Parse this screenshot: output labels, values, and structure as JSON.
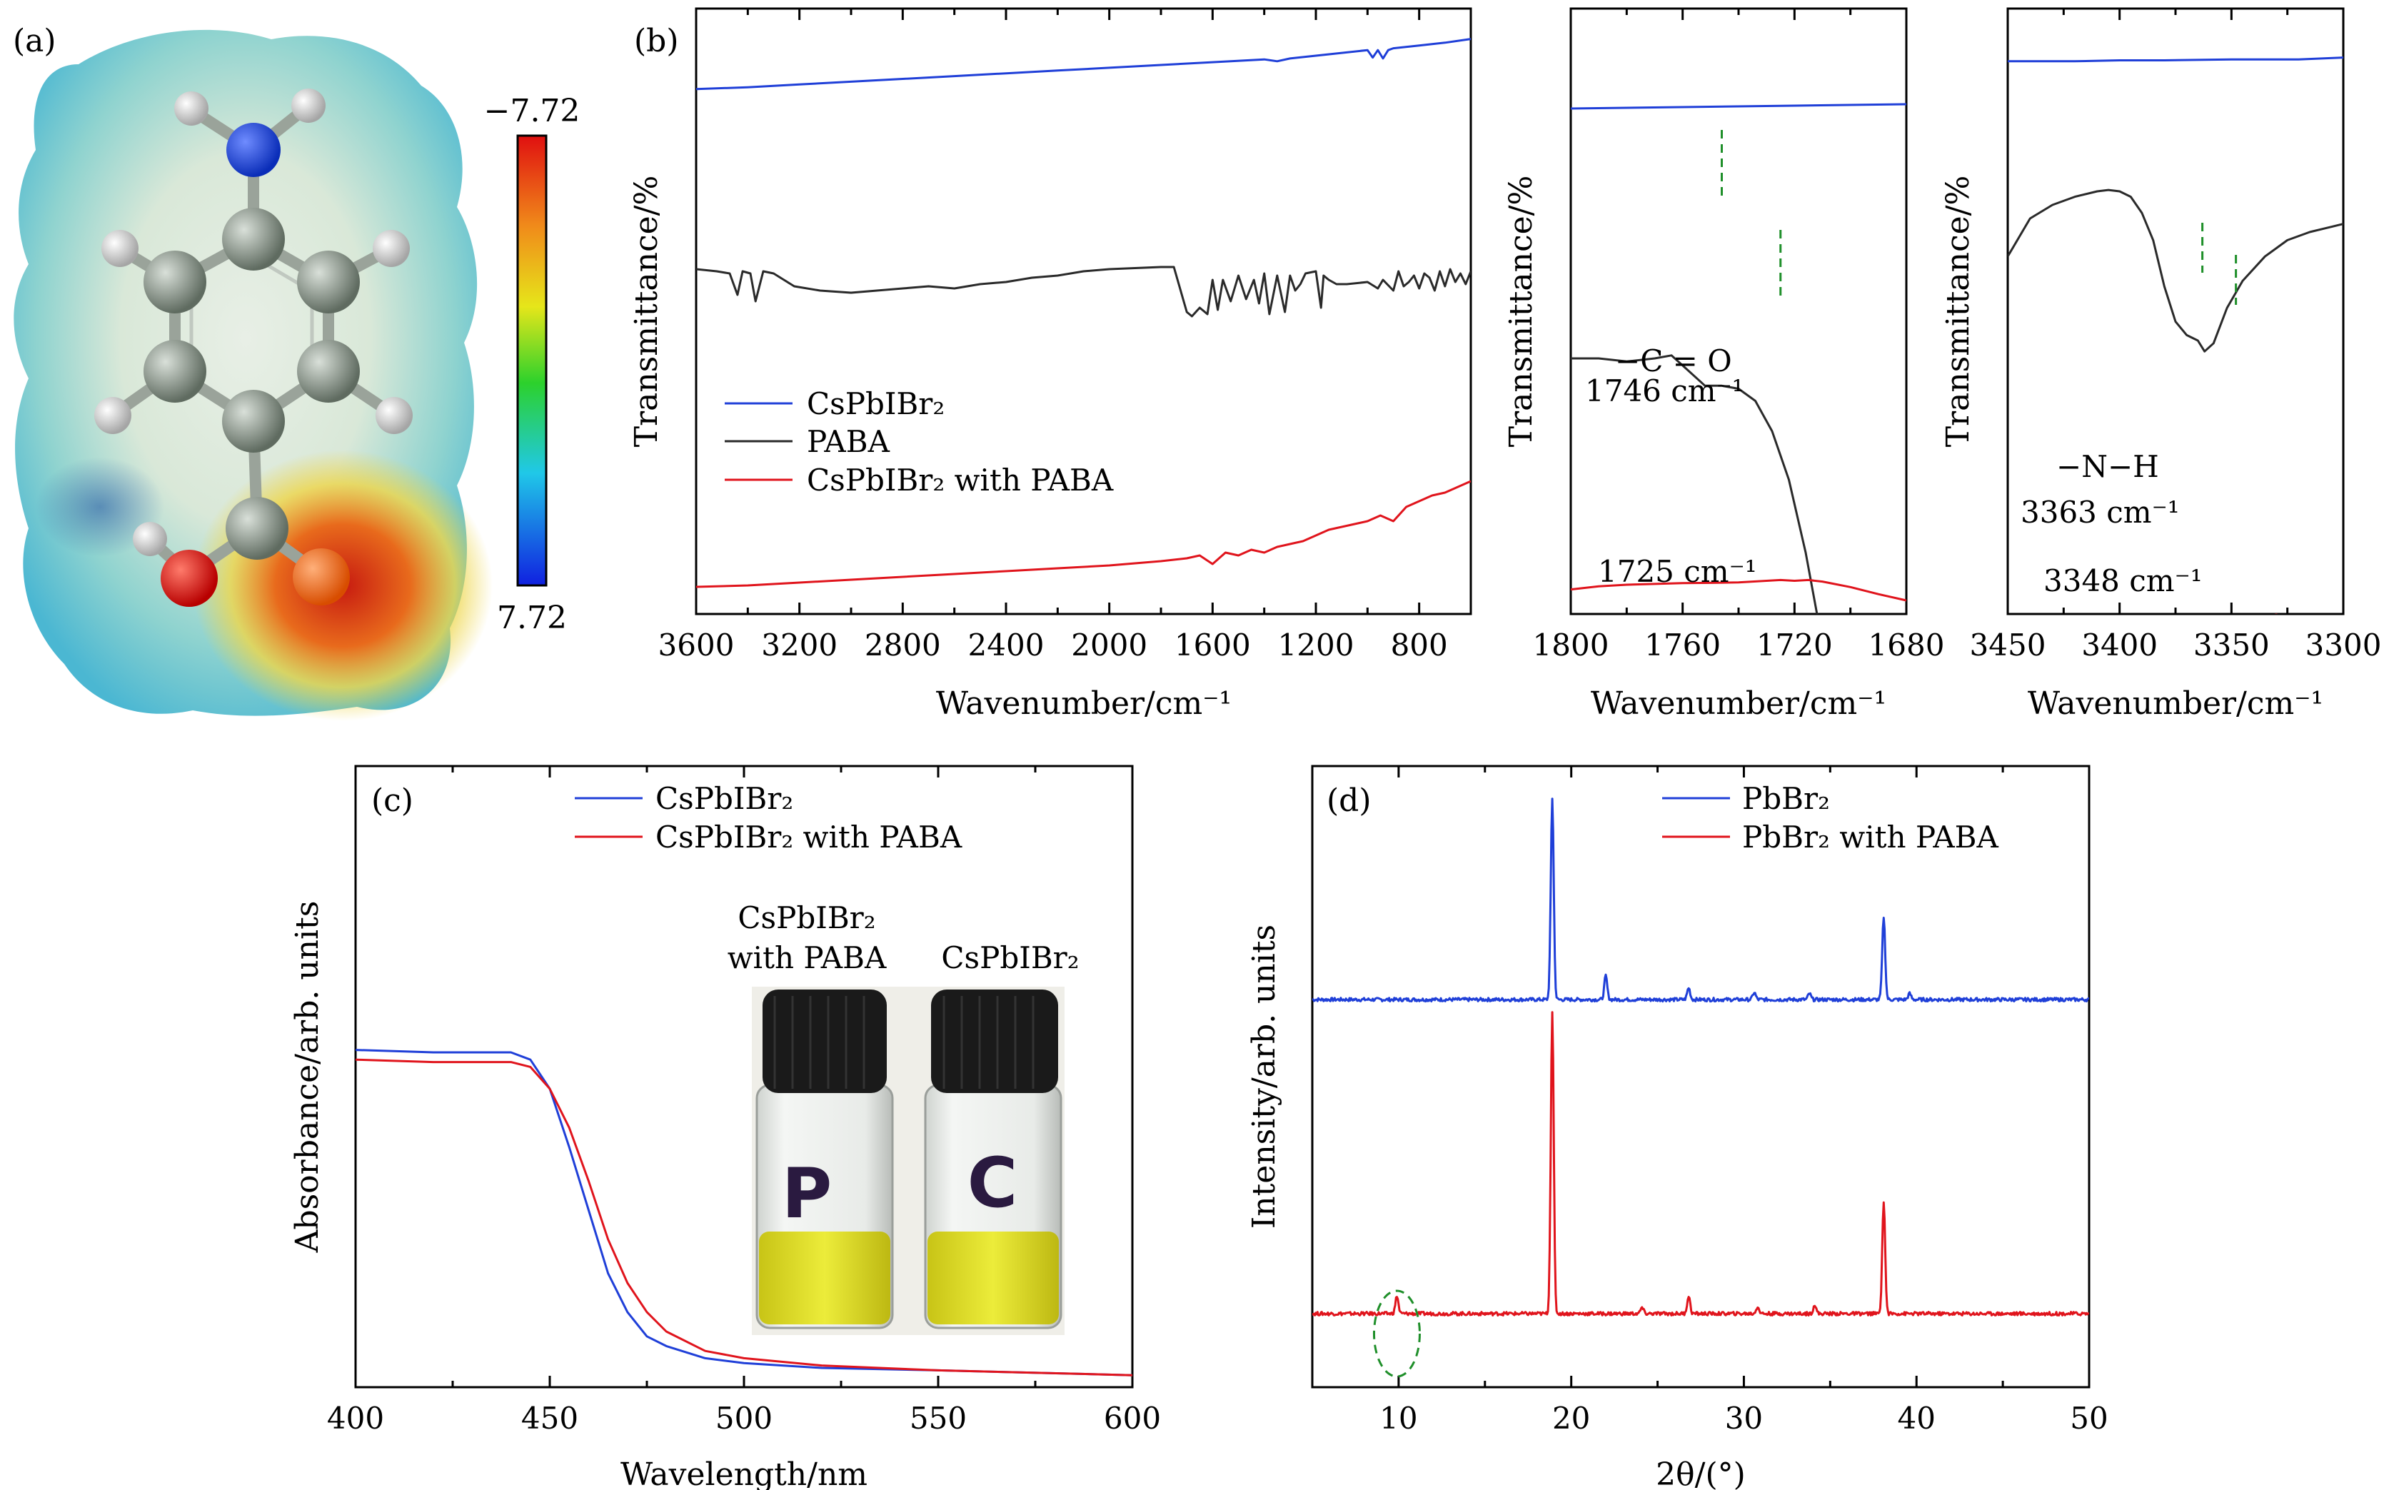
{
  "colors": {
    "blue": "#1f3fd8",
    "black": "#2a2a2a",
    "red": "#e0141c",
    "green_dash": "#1f8f2a",
    "vial_liquid": "#d9d92a",
    "vial_cap": "#1a1a1a"
  },
  "panel_a": {
    "label": "(a)",
    "colorbar_top": "−7.72",
    "colorbar_bottom": "7.72",
    "icon": "molecule-esp-map-icon"
  },
  "panel_b": {
    "label": "(b)",
    "main_ylabel": "Transmittance/%",
    "xlabel": "Wavenumber/cm⁻¹",
    "legend": [
      "CsPbIBr₂",
      "PABA",
      "CsPbIBr₂ with PABA"
    ],
    "inset1": {
      "ylabel": "Transmittance/%",
      "xlabel": "Wavenumber/cm⁻¹",
      "annot1": "−C = O",
      "annot2": "1746 cm⁻¹",
      "annot3": "1725 cm⁻¹"
    },
    "inset2": {
      "ylabel": "Transmittance/%",
      "xlabel": "Wavenumber/cm⁻¹",
      "annot1": "−N−H",
      "annot2": "3363 cm⁻¹",
      "annot3": "3348 cm⁻¹"
    }
  },
  "panel_c": {
    "label": "(c)",
    "legend": [
      "CsPbIBr₂",
      "CsPbIBr₂ with PABA"
    ],
    "photo_label_left_1": "CsPbIBr₂",
    "photo_label_left_2": "with PABA",
    "photo_label_right": "CsPbIBr₂",
    "vial_left_mark": "P",
    "vial_right_mark": "C"
  },
  "panel_d": {
    "label": "(d)",
    "legend": [
      "PbBr₂",
      "PbBr₂ with PABA"
    ]
  },
  "chart_data": [
    {
      "id": "b-main",
      "type": "line",
      "title": "",
      "xlabel": "Wavenumber/cm⁻¹",
      "ylabel": "Transmittance/%",
      "xlim": [
        3600,
        600
      ],
      "ylim": [
        0,
        100
      ],
      "xticks": [
        3600,
        3200,
        2800,
        2400,
        2000,
        1600,
        1200,
        800
      ],
      "series": [
        {
          "name": "CsPbIBr₂",
          "color": "blue",
          "x": [
            3600,
            3400,
            3200,
            3000,
            2800,
            2600,
            2400,
            2200,
            2000,
            1800,
            1600,
            1400,
            1350,
            1300,
            1200,
            1100,
            1000,
            980,
            960,
            940,
            920,
            900,
            800,
            700,
            600
          ],
          "y": [
            72,
            73,
            74.5,
            76,
            77.5,
            79,
            80.5,
            82,
            83.5,
            85,
            86.5,
            88,
            87,
            88.5,
            90,
            91.5,
            93,
            89,
            93,
            88.5,
            93,
            94,
            95.5,
            97,
            99
          ]
        },
        {
          "name": "PABA",
          "color": "black",
          "x": [
            3600,
            3520,
            3470,
            3440,
            3420,
            3390,
            3370,
            3340,
            3300,
            3220,
            3120,
            3000,
            2900,
            2800,
            2700,
            2600,
            2500,
            2400,
            2300,
            2200,
            2100,
            2000,
            1900,
            1800,
            1750,
            1700,
            1680,
            1650,
            1620,
            1600,
            1580,
            1560,
            1530,
            1500,
            1470,
            1440,
            1420,
            1400,
            1380,
            1350,
            1320,
            1300,
            1280,
            1260,
            1240,
            1200,
            1180,
            1170,
            1150,
            1120,
            1080,
            1000,
            960,
            940,
            900,
            880,
            860,
            840,
            820,
            800,
            780,
            760,
            740,
            720,
            700,
            680,
            660,
            640,
            620,
            600
          ],
          "y": [
            65,
            64,
            63,
            53,
            64,
            63,
            50,
            64,
            63,
            57,
            55,
            54,
            55,
            56,
            57,
            56,
            58,
            59,
            61,
            62,
            64,
            65,
            65.5,
            66,
            66,
            45,
            43,
            47,
            44,
            60,
            46,
            60,
            50,
            62,
            51,
            60,
            49,
            63,
            44,
            62,
            45,
            62,
            55,
            58,
            63,
            64,
            47,
            62,
            60,
            58,
            58,
            59,
            56,
            60,
            55,
            64,
            57,
            59,
            62,
            56,
            63,
            61,
            55,
            64,
            57,
            65,
            59,
            63,
            58,
            64
          ]
        },
        {
          "name": "CsPbIBr₂ with PABA",
          "color": "red",
          "x": [
            3600,
            3400,
            3200,
            3000,
            2800,
            2600,
            2400,
            2200,
            2000,
            1800,
            1700,
            1650,
            1600,
            1550,
            1500,
            1450,
            1400,
            1350,
            1300,
            1250,
            1200,
            1150,
            1100,
            1050,
            1000,
            950,
            900,
            850,
            800,
            750,
            700,
            650,
            600
          ],
          "y": [
            5,
            5.5,
            6.5,
            7.5,
            8.5,
            9.5,
            10.5,
            11.5,
            12.5,
            14,
            15,
            16,
            13,
            17,
            16,
            18,
            17,
            19,
            20,
            21,
            23,
            25,
            26,
            27,
            28,
            30,
            28,
            33,
            35,
            37,
            38,
            40,
            42
          ]
        }
      ]
    },
    {
      "id": "b-inset1",
      "type": "line",
      "xlabel": "Wavenumber/cm⁻¹",
      "ylabel": "Transmittance/%",
      "xlim": [
        1800,
        1680
      ],
      "ylim": [
        0,
        100
      ],
      "xticks": [
        1800,
        1760,
        1720,
        1680
      ],
      "series": [
        {
          "name": "CsPbIBr₂",
          "color": "blue",
          "x": [
            1800,
            1760,
            1720,
            1680
          ],
          "y": [
            80,
            81,
            82,
            83
          ]
        },
        {
          "name": "PABA",
          "color": "black",
          "x": [
            1800,
            1790,
            1780,
            1770,
            1764,
            1758,
            1752,
            1746,
            1740,
            1734,
            1728,
            1722,
            1716,
            1712,
            1708,
            1705,
            1702
          ],
          "y": [
            60,
            60,
            59.5,
            60,
            60.5,
            58,
            55.5,
            55.5,
            55,
            53,
            48,
            40,
            28,
            18,
            8,
            2,
            -2
          ]
        },
        {
          "name": "CsPbIBr₂ with PABA",
          "color": "red",
          "x": [
            1800,
            1790,
            1780,
            1770,
            1760,
            1750,
            1740,
            1730,
            1725,
            1720,
            1715,
            1710,
            1700,
            1690,
            1680
          ],
          "y": [
            12,
            14,
            15,
            15.5,
            16,
            16.2,
            16.5,
            17.5,
            18,
            17.5,
            18,
            17,
            13.5,
            9,
            5
          ]
        }
      ],
      "markers": [
        1746,
        1725
      ]
    },
    {
      "id": "b-inset2",
      "type": "line",
      "xlabel": "Wavenumber/cm⁻¹",
      "ylabel": "Transmittance/%",
      "xlim": [
        3450,
        3300
      ],
      "ylim": [
        0,
        100
      ],
      "xticks": [
        3450,
        3400,
        3350,
        3300
      ],
      "series": [
        {
          "name": "CsPbIBr₂",
          "color": "blue",
          "x": [
            3450,
            3420,
            3400,
            3380,
            3350,
            3320,
            3300
          ],
          "y": [
            87,
            87,
            87.5,
            87.5,
            88,
            88,
            89
          ]
        },
        {
          "name": "PABA",
          "color": "black",
          "x": [
            3450,
            3440,
            3430,
            3420,
            3410,
            3405,
            3400,
            3395,
            3390,
            3385,
            3380,
            3375,
            3370,
            3365,
            3362,
            3358,
            3352,
            3345,
            3335,
            3325,
            3315,
            3305,
            3300
          ],
          "y": [
            56,
            70,
            75,
            78,
            80,
            80.5,
            80,
            78,
            72,
            62,
            45,
            32,
            27,
            25,
            21,
            24,
            37,
            47,
            56,
            62,
            65,
            67,
            68
          ]
        },
        {
          "name": "CsPbIBr₂ with PABA",
          "color": "red",
          "x": [
            3450,
            3440,
            3430,
            3420,
            3410,
            3400,
            3390,
            3380,
            3370,
            3360,
            3355,
            3350,
            3345,
            3340,
            3335,
            3330,
            3325,
            3320,
            3310,
            3300
          ],
          "y": [
            12,
            9.5,
            11,
            9.5,
            11,
            10,
            9.8,
            10.5,
            10,
            10.8,
            11,
            10,
            9,
            12,
            14,
            15,
            14,
            13,
            12.5,
            13
          ]
        }
      ],
      "markers": [
        3363,
        3348
      ]
    },
    {
      "id": "c",
      "type": "line",
      "xlabel": "Wavelength/nm",
      "ylabel": "Absorbance/arb. units",
      "xlim": [
        400,
        600
      ],
      "ylim": [
        0,
        100
      ],
      "xticks": [
        400,
        450,
        500,
        550,
        600
      ],
      "series": [
        {
          "name": "CsPbIBr₂",
          "color": "blue",
          "x": [
            400,
            420,
            440,
            445,
            450,
            455,
            460,
            465,
            470,
            475,
            480,
            490,
            500,
            520,
            550,
            600
          ],
          "y": [
            68,
            67.5,
            67.5,
            66,
            60,
            48,
            35,
            22,
            14,
            9,
            7,
            4.5,
            3.5,
            2.5,
            2,
            1
          ]
        },
        {
          "name": "CsPbIBr₂ with PABA",
          "color": "red",
          "x": [
            400,
            420,
            440,
            445,
            450,
            455,
            460,
            465,
            470,
            475,
            480,
            490,
            500,
            520,
            550,
            600
          ],
          "y": [
            66,
            65.5,
            65.5,
            64.5,
            60,
            52,
            41,
            29,
            20,
            14,
            10,
            6,
            4.5,
            3,
            2,
            1
          ]
        }
      ]
    },
    {
      "id": "d",
      "type": "line",
      "xlabel": "2θ/(°)",
      "ylabel": "Intensity/arb. units",
      "xlim": [
        5,
        50
      ],
      "ylim": [
        0,
        100
      ],
      "xticks": [
        10,
        20,
        30,
        40,
        50
      ],
      "series": [
        {
          "name": "PbBr₂",
          "color": "blue",
          "baseline": 63,
          "peaks": [
            [
              18.9,
              34
            ],
            [
              22.0,
              4
            ],
            [
              26.8,
              2
            ],
            [
              30.6,
              1.2
            ],
            [
              33.8,
              1
            ],
            [
              38.1,
              14
            ],
            [
              39.6,
              1
            ]
          ]
        },
        {
          "name": "PbBr₂ with PABA",
          "color": "red",
          "baseline": 10,
          "peaks": [
            [
              9.9,
              3
            ],
            [
              18.9,
              51
            ],
            [
              24.1,
              1
            ],
            [
              26.8,
              3
            ],
            [
              30.8,
              1.2
            ],
            [
              34.1,
              1.5
            ],
            [
              38.1,
              19
            ]
          ]
        }
      ],
      "highlight": {
        "x": 9.9,
        "shape": "dashed-ellipse"
      }
    }
  ]
}
